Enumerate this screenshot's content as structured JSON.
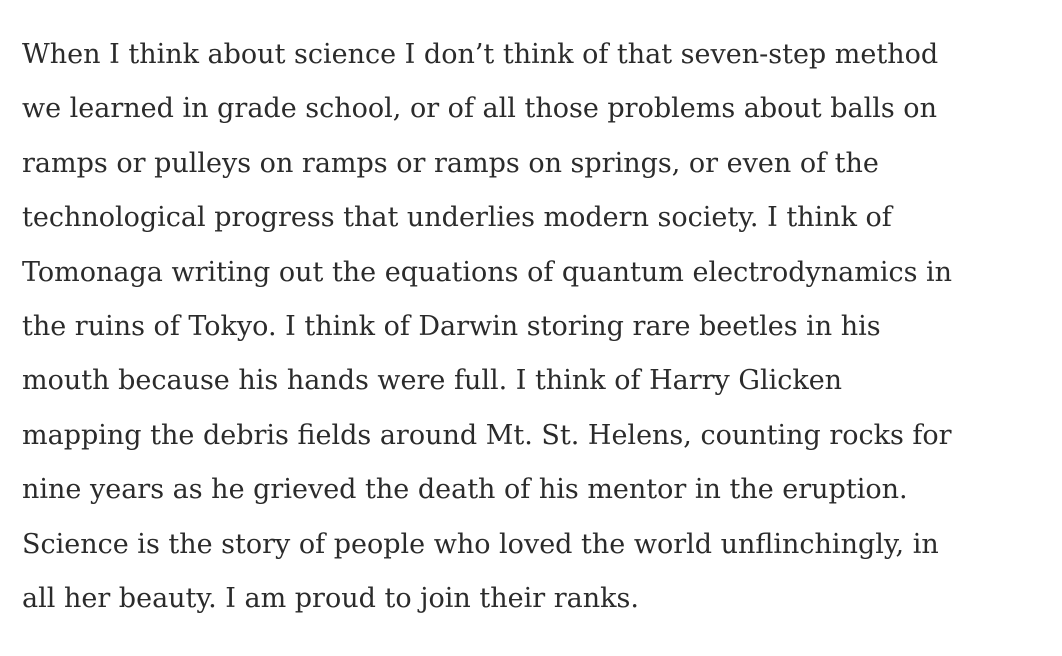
{
  "paragraph": {
    "lines": [
      "When I think about science I don’t think of that seven-step method",
      "we learned in grade school, or of all those problems about balls on",
      "ramps or pulleys on ramps or ramps on springs, or even of the",
      "technological progress that underlies modern society. I think of",
      "Tomonaga writing out the equations of quantum electrodynamics in",
      "the ruins of Tokyo. I think of Darwin storing rare beetles in his",
      "mouth because his hands were full. I think of Harry Glicken",
      "mapping the debris fields around Mt. St. Helens, counting rocks for",
      "nine years as he grieved the death of his mentor in the eruption.",
      "Science is the story of people who loved the world unflinchingly, in",
      "all her beauty. I am proud to join their ranks."
    ]
  },
  "colors": {
    "text": "#2b2b2b",
    "background": "#ffffff"
  }
}
